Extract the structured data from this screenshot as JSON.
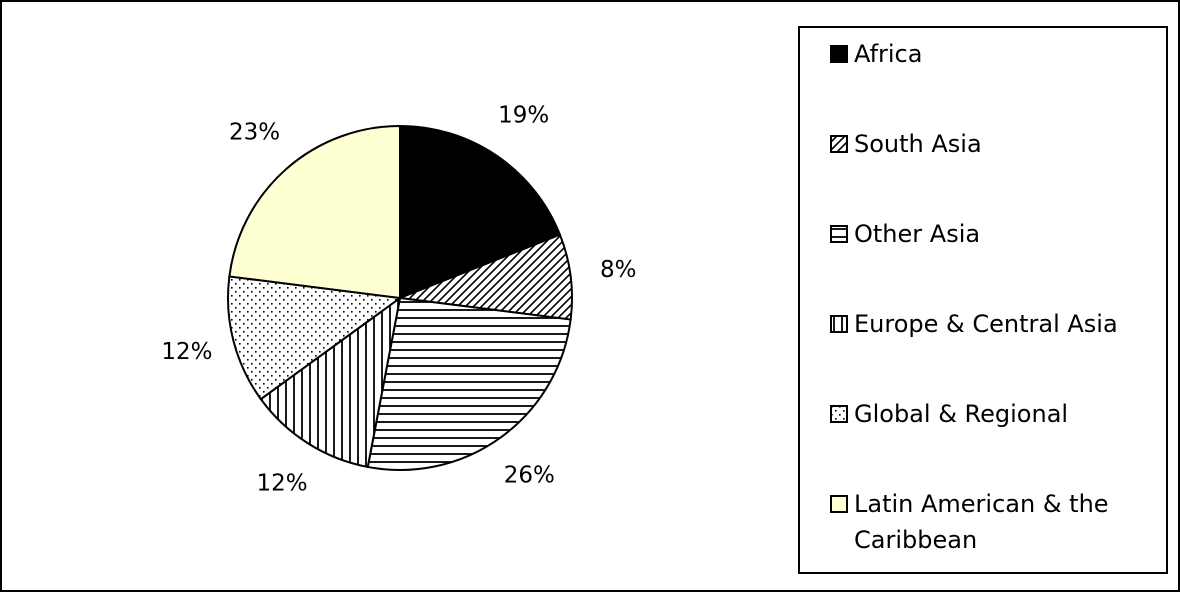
{
  "chart_data": {
    "type": "pie",
    "title": "",
    "categories": [
      "Africa",
      "South Asia",
      "Other Asia",
      "Europe & Central Asia",
      "Global & Regional",
      "Latin American & the Caribbean"
    ],
    "values": [
      19,
      8,
      26,
      12,
      12,
      23
    ],
    "value_labels": [
      "19%",
      "8%",
      "26%",
      "12%",
      "12%",
      "23%"
    ],
    "legend_position": "right",
    "start_angle_deg": 0,
    "direction": "clockwise",
    "colors": {
      "Africa": "#000000",
      "Latin American & the Caribbean": "#ffffd4",
      "outline": "#000000",
      "background": "#ffffff"
    },
    "fill_patterns": [
      "solid-black",
      "diagonal-hatch",
      "horizontal-lines",
      "vertical-lines",
      "dots",
      "solid-light-yellow"
    ]
  }
}
